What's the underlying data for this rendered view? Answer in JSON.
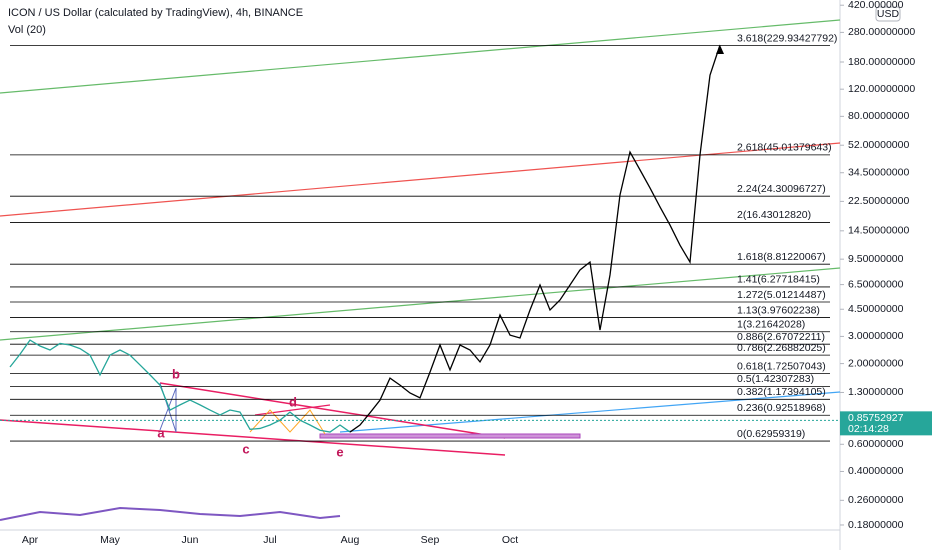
{
  "chart_data": {
    "type": "line",
    "title": "ICON / US Dollar (calculated by TradingView), 4h, BINANCE",
    "subtitle": "Vol (20)",
    "currency": "USD",
    "log_scale": true,
    "categories": [
      null,
      null,
      "Apr",
      null,
      null,
      null,
      null,
      null,
      null,
      null,
      "May",
      null,
      null,
      null,
      null,
      null,
      null,
      null,
      "Jun",
      null,
      null,
      null,
      null,
      null,
      null,
      null,
      "Jul",
      null,
      null,
      null,
      null,
      null,
      null,
      null,
      "Aug",
      null,
      null,
      null,
      null,
      null,
      null,
      null,
      "Sep",
      null,
      null,
      null,
      null,
      null,
      null,
      null,
      "Oct",
      null,
      null,
      null,
      null,
      null,
      null,
      null,
      null,
      null,
      null,
      null,
      null,
      null,
      null,
      null,
      null,
      null,
      null,
      null,
      null,
      null
    ],
    "series": [
      {
        "color": "#26a69a",
        "values": [
          1.9,
          2.3,
          2.84,
          2.6,
          2.45,
          2.7,
          2.64,
          2.5,
          2.27,
          1.69,
          2.27,
          2.45,
          2.27,
          1.96,
          1.69,
          1.45,
          1.0,
          1.08,
          1.16,
          1.08,
          1.0,
          0.93,
          1.0,
          0.97,
          0.75,
          0.76,
          0.8,
          0.86,
          0.97,
          0.86,
          0.8,
          0.74,
          0.72,
          0.8,
          0.72,
          null,
          null,
          null,
          null,
          null,
          null,
          null,
          null,
          null,
          null,
          null,
          null,
          null,
          null,
          null,
          null,
          null,
          null,
          null,
          null,
          null,
          null,
          null,
          null,
          null,
          null,
          null,
          null,
          null,
          null,
          null,
          null,
          null,
          null,
          null,
          null,
          null
        ]
      },
      {
        "color": "#000000",
        "values": [
          null,
          null,
          null,
          null,
          null,
          null,
          null,
          null,
          null,
          null,
          null,
          null,
          null,
          null,
          null,
          null,
          null,
          null,
          null,
          null,
          null,
          null,
          null,
          null,
          null,
          null,
          null,
          null,
          null,
          null,
          null,
          null,
          null,
          null,
          0.72,
          0.8,
          0.96,
          1.16,
          1.61,
          1.45,
          1.29,
          1.2,
          1.76,
          2.64,
          1.82,
          2.64,
          2.45,
          2.05,
          2.64,
          4.13,
          3.06,
          2.93,
          4.45,
          6.46,
          4.45,
          5.17,
          6.46,
          8.09,
          9.1,
          3.3,
          7.5,
          24.8,
          47,
          36,
          27.5,
          20.7,
          15.8,
          11.7,
          9.1,
          45,
          148,
          232
        ]
      }
    ],
    "ylim": [
      0.167,
      454
    ],
    "yticks": [
      {
        "value": 420,
        "label": "420.000000"
      },
      {
        "value": 280,
        "label": "280.00000000"
      },
      {
        "value": 180,
        "label": "180.00000000"
      },
      {
        "value": 120,
        "label": "120.00000000"
      },
      {
        "value": 80,
        "label": "80.00000000"
      },
      {
        "value": 52,
        "label": "52.00000000"
      },
      {
        "value": 34.5,
        "label": "34.50000000"
      },
      {
        "value": 22.5,
        "label": "22.50000000"
      },
      {
        "value": 14.5,
        "label": "14.50000000"
      },
      {
        "value": 9.5,
        "label": "9.50000000"
      },
      {
        "value": 6.5,
        "label": "6.50000000"
      },
      {
        "value": 4.5,
        "label": "4.50000000"
      },
      {
        "value": 3,
        "label": "3.00000000"
      },
      {
        "value": 2,
        "label": "2.00000000"
      },
      {
        "value": 1.3,
        "label": "1.30000000"
      },
      {
        "value": 0.6,
        "label": "0.60000000"
      },
      {
        "value": 0.4,
        "label": "0.40000000"
      },
      {
        "value": 0.26,
        "label": "0.26000000"
      },
      {
        "value": 0.18,
        "label": "0.18000000"
      }
    ],
    "fib_levels": [
      {
        "value": 229.93427792,
        "label": "3.618(229.93427792)"
      },
      {
        "value": 45.01379643,
        "label": "2.618(45.01379643)"
      },
      {
        "value": 24.30096727,
        "label": "2.24(24.30096727)"
      },
      {
        "value": 16.4301282,
        "label": "2(16.43012820)"
      },
      {
        "value": 8.81220067,
        "label": "1.618(8.81220067)"
      },
      {
        "value": 6.27718415,
        "label": "1.41(6.27718415)"
      },
      {
        "value": 5.01214487,
        "label": "1.272(5.01214487)"
      },
      {
        "value": 3.97602238,
        "label": "1.13(3.97602238)"
      },
      {
        "value": 3.21642028,
        "label": "1(3.21642028)"
      },
      {
        "value": 2.67072211,
        "label": "0.886(2.67072211)"
      },
      {
        "value": 2.26882025,
        "label": "0.786(2.26882025)"
      },
      {
        "value": 1.72507043,
        "label": "0.618(1.72507043)"
      },
      {
        "value": 1.42307283,
        "label": "0.5(1.42307283)"
      },
      {
        "value": 1.17394105,
        "label": "0.382(1.17394105)"
      },
      {
        "value": 0.92518968,
        "label": "0.236(0.92518968)"
      },
      {
        "value": 0.62959319,
        "label": "0(0.62959319)"
      }
    ],
    "wave_labels": [
      "a",
      "b",
      "c",
      "d",
      "e"
    ],
    "last_price": 0.85752927,
    "countdown": "02:14:28"
  }
}
